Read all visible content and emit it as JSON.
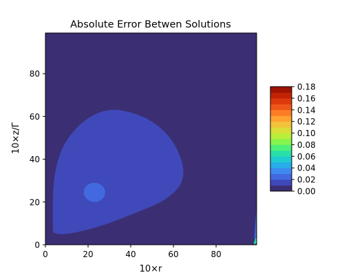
{
  "chart_data": {
    "type": "heatmap",
    "title": "Absolute Error Betwen Solutions",
    "xlabel": "10×r",
    "ylabel": "10×z/Γ",
    "xlim": [
      0,
      99
    ],
    "ylim": [
      0,
      99
    ],
    "x_ticks": [
      "0",
      "20",
      "40",
      "60",
      "80"
    ],
    "y_ticks": [
      "0",
      "20",
      "40",
      "60",
      "80"
    ],
    "grid": false,
    "legend": "colorbar-right",
    "colorbar": {
      "levels": [
        0.0,
        0.01,
        0.02,
        0.03,
        0.04,
        0.05,
        0.06,
        0.07,
        0.08,
        0.09,
        0.1,
        0.11,
        0.12,
        0.13,
        0.14,
        0.15,
        0.16,
        0.17,
        0.18
      ],
      "tick_labels": [
        "0.00",
        "0.02",
        "0.04",
        "0.06",
        "0.08",
        "0.10",
        "0.12",
        "0.14",
        "0.16",
        "0.18"
      ],
      "colors": [
        "#3b2e73",
        "#4049b9",
        "#4369e0",
        "#3e8af0",
        "#27aee9",
        "#1fcbd1",
        "#2ae0a8",
        "#4cf07a",
        "#86f54e",
        "#b8ef3a",
        "#dadd38",
        "#f3c23a",
        "#fea232",
        "#fb7c24",
        "#ef5718",
        "#dc3a0d",
        "#c22305",
        "#9e1303"
      ]
    },
    "regions": [
      {
        "level": 0,
        "value_range": [
          0.0,
          0.01
        ],
        "description": "background"
      },
      {
        "level": 1,
        "value_range": [
          0.01,
          0.02
        ],
        "shape": "large rounded lobe",
        "points": [
          [
            3.6,
            6
          ],
          [
            5,
            5
          ],
          [
            10,
            4.9
          ],
          [
            20,
            7
          ],
          [
            30,
            10
          ],
          [
            40,
            14
          ],
          [
            50,
            18
          ],
          [
            56,
            21
          ],
          [
            61,
            25
          ],
          [
            64,
            29
          ],
          [
            65,
            35
          ],
          [
            63,
            42
          ],
          [
            60,
            48
          ],
          [
            55,
            54
          ],
          [
            48,
            59
          ],
          [
            40,
            62
          ],
          [
            32,
            63.5
          ],
          [
            25,
            62
          ],
          [
            18,
            58
          ],
          [
            12,
            52
          ],
          [
            7,
            44
          ],
          [
            4,
            32
          ],
          [
            3.4,
            20
          ],
          [
            3.4,
            12
          ]
        ]
      },
      {
        "level": 2,
        "value_range": [
          0.02,
          0.03
        ],
        "shape": "small ellipse",
        "center": [
          23,
          24.5
        ],
        "radius": [
          5,
          4.5
        ]
      },
      {
        "level": 2,
        "value_range": [
          0.02,
          0.04
        ],
        "shape": "corner sliver",
        "points": [
          [
            99,
            19
          ],
          [
            99,
            2
          ],
          [
            97.8,
            2
          ],
          [
            98.4,
            10
          ]
        ]
      },
      {
        "level": 6,
        "value_range": [
          0.06,
          0.09
        ],
        "shape": "corner spot",
        "points": [
          [
            98.4,
            3
          ],
          [
            99,
            3
          ],
          [
            99,
            0.4
          ],
          [
            97.6,
            0.4
          ]
        ]
      }
    ]
  }
}
